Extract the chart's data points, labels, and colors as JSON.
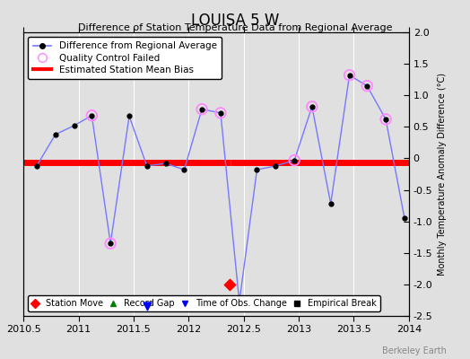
{
  "title": "LOUISA 5 W",
  "subtitle": "Difference of Station Temperature Data from Regional Average",
  "ylabel_right": "Monthly Temperature Anomaly Difference (°C)",
  "xlim": [
    2010.5,
    2014.0
  ],
  "ylim": [
    -2.5,
    2.0
  ],
  "yticks": [
    -2.5,
    -2.0,
    -1.5,
    -1.0,
    -0.5,
    0.0,
    0.5,
    1.0,
    1.5,
    2.0
  ],
  "xticks": [
    2010.5,
    2011.0,
    2011.5,
    2012.0,
    2012.5,
    2013.0,
    2013.5,
    2014.0
  ],
  "xticklabels": [
    "2010.5",
    "2011",
    "2011.5",
    "2012",
    "2012.5",
    "2013",
    "2013.5",
    "2014"
  ],
  "line_color": "#7777FF",
  "line_marker_color": "black",
  "bias_line_color": "red",
  "bias_value": -0.07,
  "bias_seg1_end": 2012.38,
  "bias_seg2_start": 2012.38,
  "qc_circle_color": "#FF88FF",
  "background_color": "#E0E0E0",
  "plot_bg_color": "#E0E0E0",
  "grid_color": "white",
  "watermark": "Berkeley Earth",
  "data_x": [
    2010.62,
    2010.79,
    2010.96,
    2011.12,
    2011.29,
    2011.46,
    2011.62,
    2011.79,
    2011.96,
    2012.12,
    2012.29,
    2012.46,
    2012.62,
    2012.79,
    2012.96,
    2013.12,
    2013.29,
    2013.46,
    2013.62,
    2013.79,
    2013.96
  ],
  "data_y": [
    -0.12,
    0.38,
    0.52,
    0.68,
    -1.35,
    0.67,
    -0.12,
    -0.08,
    -0.18,
    0.78,
    0.72,
    -2.28,
    -0.18,
    -0.12,
    -0.03,
    0.82,
    -0.72,
    1.32,
    1.15,
    0.62,
    -0.95
  ],
  "qc_x": [
    2011.12,
    2011.29,
    2012.12,
    2012.29,
    2012.96,
    2013.12,
    2013.46,
    2013.62,
    2013.79
  ],
  "qc_y": [
    0.68,
    -1.35,
    0.78,
    0.72,
    -0.03,
    0.82,
    1.32,
    1.15,
    0.62
  ],
  "station_move_x": 2012.37,
  "station_move_y": -2.0,
  "obs_change_x": 2011.62,
  "obs_change_y": -2.35,
  "legend1_labels": [
    "Difference from Regional Average",
    "Quality Control Failed",
    "Estimated Station Mean Bias"
  ],
  "legend2_labels": [
    "Station Move",
    "Record Gap",
    "Time of Obs. Change",
    "Empirical Break"
  ]
}
